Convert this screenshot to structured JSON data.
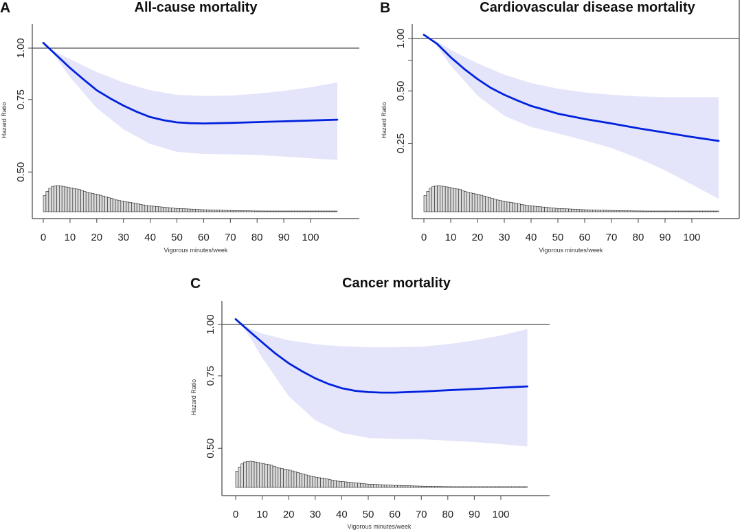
{
  "chart_data": [
    {
      "panel": "A",
      "type": "line",
      "title": "All-cause mortality",
      "xlabel": "Vigorous minutes/week",
      "ylabel": "Hazard Ratio",
      "yscale": "log",
      "xlim": [
        0,
        110
      ],
      "ylim": [
        0.44,
        1.1
      ],
      "xticks": [
        0,
        10,
        20,
        30,
        40,
        50,
        60,
        70,
        80,
        90,
        100
      ],
      "yticks": [
        1.0,
        0.75,
        0.5
      ],
      "ytick_labels": [
        "1.00",
        "0.75",
        "0.50"
      ],
      "reference_line": 1.0,
      "series": [
        {
          "name": "Hazard Ratio",
          "color": "#0022dd",
          "x": [
            0,
            5,
            10,
            15,
            20,
            25,
            30,
            35,
            40,
            45,
            50,
            55,
            60,
            70,
            80,
            90,
            100,
            110
          ],
          "y": [
            1.03,
            0.96,
            0.895,
            0.84,
            0.79,
            0.755,
            0.725,
            0.7,
            0.68,
            0.668,
            0.66,
            0.657,
            0.656,
            0.658,
            0.661,
            0.664,
            0.667,
            0.67
          ]
        },
        {
          "name": "95% CI upper",
          "color": "#e4e4fa",
          "x": [
            2,
            5,
            10,
            20,
            30,
            40,
            50,
            60,
            70,
            80,
            90,
            100,
            110
          ],
          "y": [
            1.0,
            0.975,
            0.94,
            0.875,
            0.825,
            0.79,
            0.77,
            0.765,
            0.767,
            0.775,
            0.787,
            0.803,
            0.825
          ]
        },
        {
          "name": "95% CI lower",
          "color": "#e4e4fa",
          "x": [
            2,
            5,
            10,
            20,
            30,
            40,
            50,
            60,
            70,
            80,
            90,
            100,
            110
          ],
          "y": [
            1.0,
            0.945,
            0.85,
            0.715,
            0.635,
            0.585,
            0.56,
            0.553,
            0.552,
            0.55,
            0.545,
            0.54,
            0.535
          ]
        }
      ]
    },
    {
      "panel": "B",
      "type": "line",
      "title": "Cardiovascular disease mortality",
      "xlabel": "Vigorous minutes/week",
      "ylabel": "Hazard Ratio",
      "yscale": "log",
      "xlim": [
        0,
        110
      ],
      "ylim": [
        0.06,
        1.15
      ],
      "xticks": [
        0,
        10,
        20,
        30,
        40,
        50,
        60,
        70,
        80,
        90,
        100
      ],
      "yticks": [
        1.0,
        0.75,
        0.5,
        0.25
      ],
      "ytick_labels": [
        "1.00",
        "",
        "0.50",
        "0.25"
      ],
      "reference_line": 1.0,
      "series": [
        {
          "name": "Hazard Ratio",
          "color": "#0022dd",
          "x": [
            0,
            5,
            10,
            15,
            20,
            25,
            30,
            35,
            40,
            45,
            50,
            60,
            70,
            80,
            90,
            100,
            110
          ],
          "y": [
            1.05,
            0.93,
            0.78,
            0.67,
            0.585,
            0.52,
            0.475,
            0.44,
            0.41,
            0.39,
            0.37,
            0.345,
            0.325,
            0.305,
            0.288,
            0.272,
            0.258
          ]
        },
        {
          "name": "95% CI upper",
          "color": "#e4e4fa",
          "x": [
            2,
            5,
            10,
            20,
            30,
            40,
            50,
            60,
            70,
            80,
            90,
            100,
            110
          ],
          "y": [
            1.0,
            0.96,
            0.86,
            0.72,
            0.62,
            0.555,
            0.515,
            0.49,
            0.475,
            0.465,
            0.46,
            0.46,
            0.46
          ]
        },
        {
          "name": "95% CI lower",
          "color": "#e4e4fa",
          "x": [
            2,
            5,
            10,
            20,
            30,
            40,
            50,
            60,
            70,
            80,
            90,
            100,
            110
          ],
          "y": [
            1.0,
            0.9,
            0.7,
            0.47,
            0.36,
            0.31,
            0.285,
            0.26,
            0.235,
            0.205,
            0.175,
            0.145,
            0.12
          ]
        }
      ]
    },
    {
      "panel": "C",
      "type": "line",
      "title": "Cancer mortality",
      "xlabel": "Vigorous minutes/week",
      "ylabel": "Hazard Ratio",
      "yscale": "log",
      "xlim": [
        0,
        110
      ],
      "ylim": [
        0.44,
        1.1
      ],
      "xticks": [
        0,
        10,
        20,
        30,
        40,
        50,
        60,
        70,
        80,
        90,
        100
      ],
      "yticks": [
        1.0,
        0.75,
        0.5
      ],
      "ytick_labels": [
        "1.00",
        "0.75",
        "0.50"
      ],
      "reference_line": 1.0,
      "series": [
        {
          "name": "Hazard Ratio",
          "color": "#0022dd",
          "x": [
            0,
            5,
            10,
            15,
            20,
            25,
            30,
            35,
            40,
            45,
            50,
            55,
            60,
            70,
            80,
            90,
            100,
            110
          ],
          "y": [
            1.03,
            0.965,
            0.905,
            0.85,
            0.805,
            0.77,
            0.74,
            0.717,
            0.7,
            0.69,
            0.685,
            0.683,
            0.683,
            0.687,
            0.692,
            0.697,
            0.702,
            0.707
          ]
        },
        {
          "name": "95% CI upper",
          "color": "#e4e4fa",
          "x": [
            2,
            5,
            10,
            20,
            30,
            40,
            50,
            60,
            70,
            80,
            90,
            100,
            110
          ],
          "y": [
            1.0,
            0.98,
            0.95,
            0.915,
            0.895,
            0.885,
            0.88,
            0.88,
            0.883,
            0.895,
            0.915,
            0.94,
            0.975
          ]
        },
        {
          "name": "95% CI lower",
          "color": "#e4e4fa",
          "x": [
            2,
            5,
            10,
            20,
            30,
            40,
            50,
            60,
            70,
            80,
            90,
            100,
            110
          ],
          "y": [
            1.0,
            0.94,
            0.83,
            0.67,
            0.585,
            0.545,
            0.53,
            0.527,
            0.526,
            0.522,
            0.518,
            0.512,
            0.505
          ]
        }
      ]
    }
  ],
  "histogram": {
    "description": "Distribution of vigorous minutes/week (relative frequency)",
    "bin_width": 1,
    "relative_heights": [
      0.62,
      0.78,
      0.9,
      0.97,
      0.99,
      1.0,
      0.99,
      0.97,
      0.95,
      0.93,
      0.91,
      0.89,
      0.87,
      0.85,
      0.81,
      0.77,
      0.74,
      0.72,
      0.7,
      0.68,
      0.66,
      0.63,
      0.6,
      0.57,
      0.54,
      0.51,
      0.48,
      0.45,
      0.43,
      0.41,
      0.39,
      0.37,
      0.36,
      0.34,
      0.32,
      0.3,
      0.28,
      0.26,
      0.24,
      0.23,
      0.22,
      0.21,
      0.2,
      0.19,
      0.18,
      0.17,
      0.16,
      0.15,
      0.14,
      0.13,
      0.125,
      0.12,
      0.115,
      0.11,
      0.105,
      0.1,
      0.095,
      0.09,
      0.085,
      0.08,
      0.077,
      0.074,
      0.071,
      0.068,
      0.065,
      0.062,
      0.059,
      0.056,
      0.053,
      0.05,
      0.048,
      0.046,
      0.044,
      0.042,
      0.04,
      0.038,
      0.036,
      0.034,
      0.032,
      0.03,
      0.029,
      0.028,
      0.027,
      0.026,
      0.025,
      0.024,
      0.023,
      0.022,
      0.021,
      0.02,
      0.02,
      0.019,
      0.019,
      0.018,
      0.018,
      0.017,
      0.017,
      0.016,
      0.016,
      0.015,
      0.015,
      0.014,
      0.014,
      0.013,
      0.013,
      0.012,
      0.012,
      0.011,
      0.011,
      0.01
    ],
    "fill": "#d9d9d9",
    "stroke": "#222222"
  },
  "colors": {
    "curve": "#0022dd",
    "ci_band": "#e4e4fa",
    "axis": "#444444",
    "reference_line": "#222222"
  }
}
